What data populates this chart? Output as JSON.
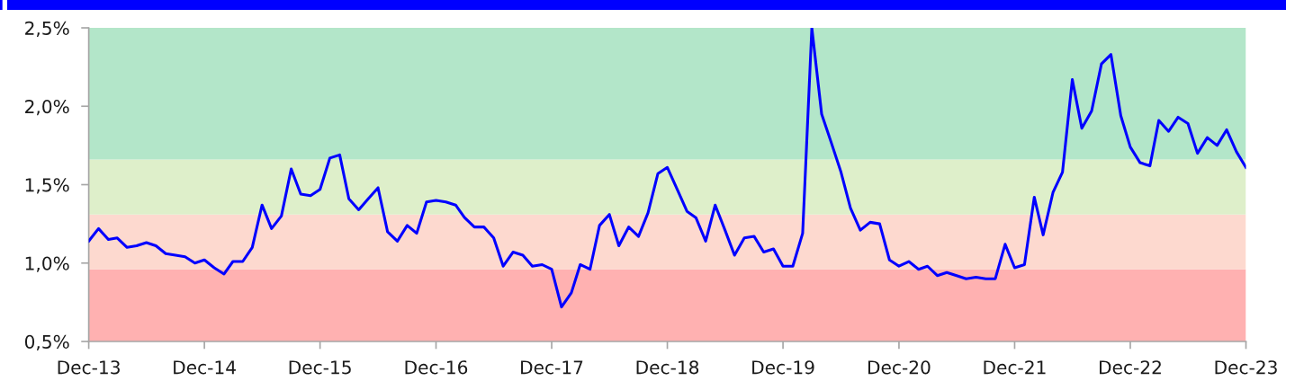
{
  "chart_data": {
    "type": "line",
    "x": [
      "2013-12",
      "2014-01",
      "2014-02",
      "2014-03",
      "2014-04",
      "2014-05",
      "2014-06",
      "2014-07",
      "2014-08",
      "2014-09",
      "2014-10",
      "2014-11",
      "2014-12",
      "2015-01",
      "2015-02",
      "2015-03",
      "2015-04",
      "2015-05",
      "2015-06",
      "2015-07",
      "2015-08",
      "2015-09",
      "2015-10",
      "2015-11",
      "2015-12",
      "2016-01",
      "2016-02",
      "2016-03",
      "2016-04",
      "2016-05",
      "2016-06",
      "2016-07",
      "2016-08",
      "2016-09",
      "2016-10",
      "2016-11",
      "2016-12",
      "2017-01",
      "2017-02",
      "2017-03",
      "2017-04",
      "2017-05",
      "2017-06",
      "2017-07",
      "2017-08",
      "2017-09",
      "2017-10",
      "2017-11",
      "2017-12",
      "2018-01",
      "2018-02",
      "2018-03",
      "2018-04",
      "2018-05",
      "2018-06",
      "2018-07",
      "2018-08",
      "2018-09",
      "2018-10",
      "2018-11",
      "2018-12",
      "2019-01",
      "2019-02",
      "2019-03",
      "2019-04",
      "2019-05",
      "2019-06",
      "2019-07",
      "2019-08",
      "2019-09",
      "2019-10",
      "2019-11",
      "2019-12",
      "2020-01",
      "2020-02",
      "2020-03",
      "2020-04",
      "2020-05",
      "2020-06",
      "2020-07",
      "2020-08",
      "2020-09",
      "2020-10",
      "2020-11",
      "2020-12",
      "2021-01",
      "2021-02",
      "2021-03",
      "2021-04",
      "2021-05",
      "2021-06",
      "2021-07",
      "2021-08",
      "2021-09",
      "2021-10",
      "2021-11",
      "2021-12",
      "2022-01",
      "2022-02",
      "2022-03",
      "2022-04",
      "2022-05",
      "2022-06",
      "2022-07",
      "2022-08",
      "2022-09",
      "2022-10",
      "2022-11",
      "2022-12",
      "2023-01",
      "2023-02",
      "2023-03",
      "2023-04",
      "2023-05",
      "2023-06",
      "2023-07",
      "2023-08",
      "2023-09",
      "2023-10",
      "2023-11",
      "2023-12"
    ],
    "series": [
      {
        "color": "#0000ff",
        "values": [
          1.14,
          1.22,
          1.15,
          1.16,
          1.1,
          1.11,
          1.13,
          1.11,
          1.06,
          1.05,
          1.04,
          1.0,
          1.02,
          0.97,
          0.93,
          1.01,
          1.01,
          1.1,
          1.37,
          1.22,
          1.3,
          1.6,
          1.44,
          1.43,
          1.47,
          1.67,
          1.69,
          1.41,
          1.34,
          1.41,
          1.48,
          1.2,
          1.14,
          1.24,
          1.19,
          1.39,
          1.4,
          1.39,
          1.37,
          1.29,
          1.23,
          1.23,
          1.16,
          0.98,
          1.07,
          1.05,
          0.98,
          0.99,
          0.96,
          0.72,
          0.81,
          0.99,
          0.96,
          1.24,
          1.31,
          1.11,
          1.23,
          1.17,
          1.32,
          1.57,
          1.61,
          1.47,
          1.33,
          1.29,
          1.14,
          1.37,
          1.21,
          1.05,
          1.16,
          1.17,
          1.07,
          1.09,
          0.98,
          0.98,
          1.19,
          2.5,
          1.95,
          1.77,
          1.58,
          1.35,
          1.21,
          1.26,
          1.25,
          1.02,
          0.98,
          1.01,
          0.96,
          0.98,
          0.92,
          0.94,
          0.92,
          0.9,
          0.91,
          0.9,
          0.9,
          1.12,
          0.97,
          0.99,
          1.42,
          1.18,
          1.45,
          1.58,
          2.17,
          1.86,
          1.97,
          2.27,
          2.33,
          1.94,
          1.74,
          1.64,
          1.62,
          1.91,
          1.84,
          1.93,
          1.89,
          1.7,
          1.8,
          1.75,
          1.85,
          1.71,
          1.61
        ]
      }
    ],
    "xlim": [
      "2013-12",
      "2023-12"
    ],
    "xticks": [
      {
        "value": "2013-12",
        "label": "Dec-13"
      },
      {
        "value": "2014-12",
        "label": "Dec-14"
      },
      {
        "value": "2015-12",
        "label": "Dec-15"
      },
      {
        "value": "2016-12",
        "label": "Dec-16"
      },
      {
        "value": "2017-12",
        "label": "Dec-17"
      },
      {
        "value": "2018-12",
        "label": "Dec-18"
      },
      {
        "value": "2019-12",
        "label": "Dec-19"
      },
      {
        "value": "2020-12",
        "label": "Dec-20"
      },
      {
        "value": "2021-12",
        "label": "Dec-21"
      },
      {
        "value": "2022-12",
        "label": "Dec-22"
      },
      {
        "value": "2023-12",
        "label": "Dec-23"
      }
    ],
    "ylim": [
      0.5,
      2.5
    ],
    "yticks": [
      {
        "value": 0.5,
        "label": "0,5%"
      },
      {
        "value": 1.0,
        "label": "1,0%"
      },
      {
        "value": 1.5,
        "label": "1,5%"
      },
      {
        "value": 2.0,
        "label": "2,0%"
      },
      {
        "value": 2.5,
        "label": "2,5%"
      }
    ],
    "bands": [
      {
        "axis": "y",
        "from": 0.5,
        "to": 0.96,
        "color": "#ffb1b1"
      },
      {
        "axis": "y",
        "from": 0.96,
        "to": 1.31,
        "color": "#fdd9cf"
      },
      {
        "axis": "y",
        "from": 1.31,
        "to": 1.66,
        "color": "#deefca"
      },
      {
        "axis": "y",
        "from": 1.66,
        "to": 2.5,
        "color": "#b3e6c9"
      }
    ],
    "line_style": "solid"
  }
}
